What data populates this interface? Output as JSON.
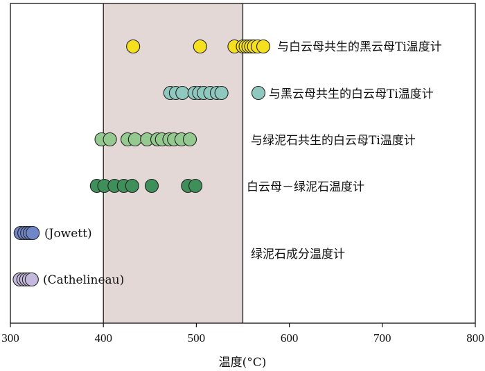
{
  "chart_data": {
    "type": "scatter",
    "xlabel": "温度(°C)",
    "xlim": [
      300,
      800
    ],
    "xticks": [
      300,
      400,
      500,
      600,
      700,
      800
    ],
    "shaded_range": [
      400,
      550
    ],
    "colors": {
      "shade": "#e3d8d5",
      "yellow": "#f5e020",
      "teal": "#8fc8bf",
      "lightgreen": "#94c98f",
      "darkgreen": "#3f8f5a",
      "blue": "#6f86c8",
      "lavender": "#c4b8dc"
    },
    "series": [
      {
        "name": "与白云母共生的黑云母Ti温度计",
        "color": "#f5e020",
        "x": [
          432,
          504,
          541,
          550,
          553,
          556,
          559,
          562,
          566,
          572
        ]
      },
      {
        "name": "与黑云母共生的白云母Ti温度计",
        "color": "#8fc8bf",
        "x": [
          472,
          478,
          485,
          498,
          503,
          508,
          515,
          522,
          527,
          565
        ]
      },
      {
        "name": "与绿泥石共生的白云母Ti温度计",
        "color": "#94c98f",
        "x": [
          398,
          407,
          426,
          434,
          447,
          458,
          463,
          471,
          476,
          484,
          493
        ]
      },
      {
        "name": "白云母－绿泥石温度计",
        "color": "#3f8f5a",
        "x": [
          393,
          401,
          412,
          422,
          431,
          452,
          491,
          499
        ]
      },
      {
        "name": "(Jowett)",
        "color": "#6f86c8",
        "x": [
          311,
          315,
          318,
          321,
          324
        ]
      },
      {
        "name": "(Cathelineau)",
        "color": "#c4b8dc",
        "x": [
          310,
          314,
          317,
          320,
          323
        ]
      }
    ],
    "group_label": "绿泥石成分温度计"
  }
}
